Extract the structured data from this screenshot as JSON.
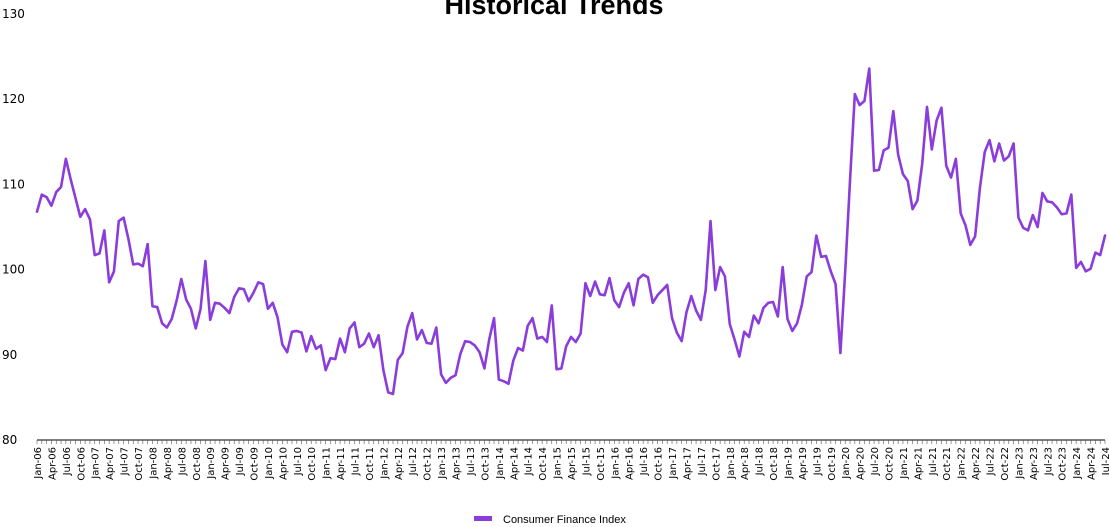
{
  "colors": {
    "series": "#8b3ddb",
    "axis": "#000000"
  },
  "chart_data": {
    "type": "line",
    "title": "Historical Trends",
    "xlabel": "",
    "ylabel": "",
    "ylim": [
      80,
      130
    ],
    "yticks": [
      80,
      90,
      100,
      110,
      120,
      130
    ],
    "grid": false,
    "legend_position": "bottom",
    "x_start": "Jan-06",
    "x_end": "Jul-24",
    "x_tick_labels": [
      "Jan-06",
      "Apr-06",
      "Jul-06",
      "Oct-06",
      "Jan-07",
      "Apr-07",
      "Jul-07",
      "Oct-07",
      "Jan-08",
      "Apr-08",
      "Jul-08",
      "Oct-08",
      "Jan-09",
      "Apr-09",
      "Jul-09",
      "Oct-09",
      "Jan-10",
      "Apr-10",
      "Jul-10",
      "Oct-10",
      "Jan-11",
      "Apr-11",
      "Jul-11",
      "Oct-11",
      "Jan-12",
      "Apr-12",
      "Jul-12",
      "Oct-12",
      "Jan-13",
      "Apr-13",
      "Jul-13",
      "Oct-13",
      "Jan-14",
      "Apr-14",
      "Jul-14",
      "Oct-14",
      "Jan-15",
      "Apr-15",
      "Jul-15",
      "Oct-15",
      "Jan-16",
      "Apr-16",
      "Jul-16",
      "Oct-16",
      "Jan-17",
      "Apr-17",
      "Jul-17",
      "Oct-17",
      "Jan-18",
      "Apr-18",
      "Jul-18",
      "Oct-18",
      "Jan-19",
      "Apr-19",
      "Jul-19",
      "Oct-19",
      "Jan-20",
      "Apr-20",
      "Jul-20",
      "Oct-20",
      "Jan-21",
      "Apr-21",
      "Jul-21",
      "Oct-21",
      "Jan-22",
      "Apr-22",
      "Jul-22",
      "Oct-22",
      "Jan-23",
      "Apr-23",
      "Jul-23",
      "Oct-23",
      "Jan-24",
      "Apr-24",
      "Jul-24"
    ],
    "series": [
      {
        "name": "Consumer Finance Index",
        "values": [
          106.8,
          108.8,
          108.5,
          107.5,
          109.1,
          109.7,
          113.0,
          110.6,
          108.4,
          106.2,
          107.1,
          105.9,
          101.7,
          101.9,
          104.6,
          98.5,
          99.8,
          105.7,
          106.1,
          103.6,
          100.6,
          100.7,
          100.4,
          103.0,
          95.7,
          95.6,
          93.7,
          93.2,
          94.2,
          96.3,
          98.9,
          96.5,
          95.4,
          93.1,
          95.4,
          101.0,
          94.1,
          96.1,
          96.0,
          95.5,
          94.9,
          96.8,
          97.8,
          97.7,
          96.3,
          97.3,
          98.5,
          98.3,
          95.4,
          96.1,
          94.4,
          91.2,
          90.3,
          92.7,
          92.8,
          92.6,
          90.4,
          92.2,
          90.7,
          91.1,
          88.2,
          89.6,
          89.5,
          91.9,
          90.3,
          93.1,
          93.8,
          90.9,
          91.3,
          92.5,
          90.9,
          92.3,
          88.2,
          85.6,
          85.4,
          89.4,
          90.2,
          93.3,
          94.9,
          91.8,
          92.9,
          91.4,
          91.3,
          93.2,
          87.7,
          86.7,
          87.3,
          87.6,
          90.1,
          91.6,
          91.5,
          91.1,
          90.3,
          88.4,
          91.8,
          94.3,
          87.1,
          86.9,
          86.6,
          89.3,
          90.8,
          90.5,
          93.4,
          94.3,
          91.9,
          92.1,
          91.5,
          95.8,
          88.3,
          88.4,
          91.0,
          92.1,
          91.5,
          92.5,
          98.4,
          96.9,
          98.6,
          97.1,
          97.0,
          99.0,
          96.4,
          95.6,
          97.3,
          98.4,
          95.8,
          98.9,
          99.4,
          99.1,
          96.1,
          97.0,
          97.6,
          98.2,
          94.3,
          92.6,
          91.6,
          95.0,
          96.9,
          95.2,
          94.1,
          97.6,
          105.7,
          97.6,
          100.3,
          99.2,
          93.6,
          91.8,
          89.8,
          92.7,
          92.1,
          94.6,
          93.7,
          95.5,
          96.1,
          96.2,
          94.5,
          100.3,
          94.2,
          92.8,
          93.7,
          95.9,
          99.2,
          99.7,
          104.0,
          101.5,
          101.6,
          99.8,
          98.3,
          90.2,
          99.8,
          110.5,
          120.6,
          119.3,
          119.8,
          123.6,
          111.6,
          111.7,
          114.0,
          114.3,
          118.6,
          113.5,
          111.2,
          110.4,
          107.1,
          108.1,
          112.4,
          119.1,
          114.1,
          117.5,
          119.0,
          112.2,
          110.8,
          113.0,
          106.6,
          105.2,
          102.9,
          103.9,
          109.6,
          113.8,
          115.2,
          112.7,
          114.8,
          112.8,
          113.3,
          114.8,
          106.1,
          104.9,
          104.6,
          106.4,
          105.0,
          109.0,
          108.0,
          107.9,
          107.3,
          106.5,
          106.6,
          108.8,
          100.2,
          100.9,
          99.8,
          100.1,
          102.0,
          101.7,
          104.0
        ]
      }
    ]
  }
}
